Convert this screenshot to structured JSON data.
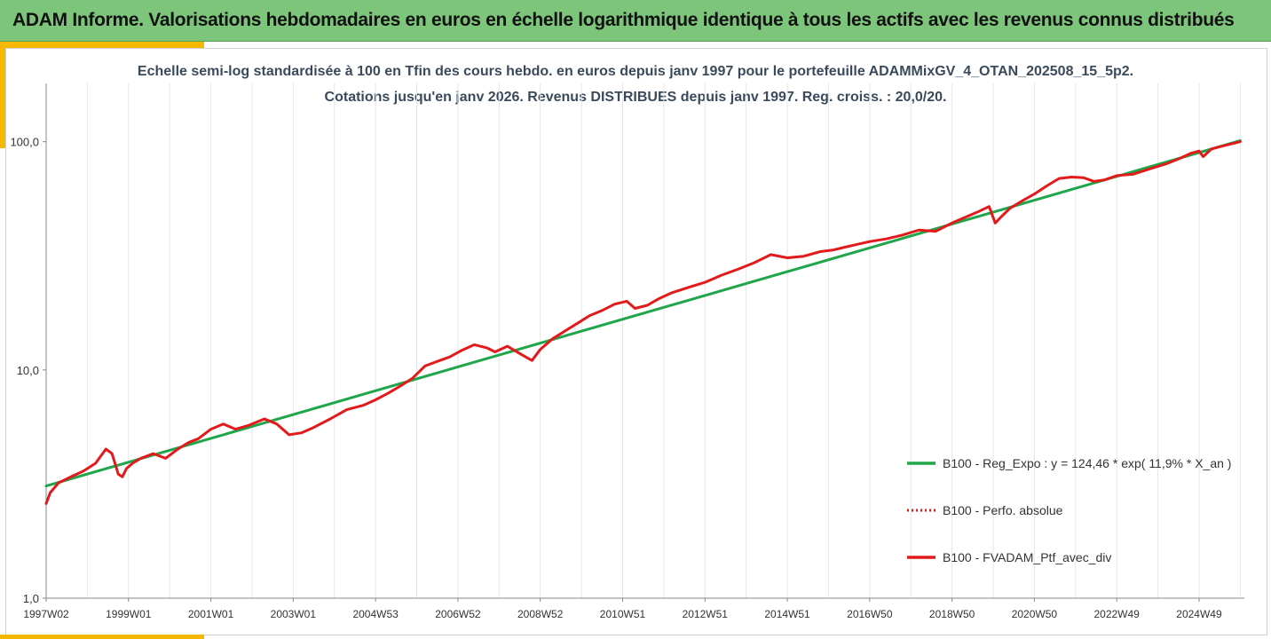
{
  "banner": {
    "title": "ADAM Informe. Valorisations hebdomadaires en euros en échelle logarithmique identique à tous les actifs avec les revenus connus distribués"
  },
  "colors": {
    "banner_bg": "#7cc57a",
    "accent": "#f5b700",
    "reg_line": "#1fa64a",
    "perf_line": "#e31a1c",
    "ptf_line": "#e31a1c",
    "grid": "#e6e6e6"
  },
  "chart_data": {
    "type": "line",
    "title": "Echelle semi-log standardisée  à 100 en Tfin des cours hebdo.  en euros depuis janv 1997 pour le portefeuille ADAMMixGV_4_OTAN_202508_15_5p2.",
    "subtitle": "Cotations  jusqu'en janv 2026. Revenus DISTRIBUES depuis janv 1997. Reg. croiss. : 20,0/20.",
    "y_scale": "log",
    "ylim": [
      1,
      180
    ],
    "y_ticks": [
      {
        "value": 1,
        "label": "1,0"
      },
      {
        "value": 10,
        "label": "10,0"
      },
      {
        "value": 100,
        "label": "100,0"
      }
    ],
    "xlim": [
      1997.0,
      2026.1
    ],
    "x_ticks": [
      {
        "value": 1997.0,
        "label": "1997W02"
      },
      {
        "value": 1999.0,
        "label": "1999W01"
      },
      {
        "value": 2001.0,
        "label": "2001W01"
      },
      {
        "value": 2003.0,
        "label": "2003W01"
      },
      {
        "value": 2005.0,
        "label": "2004W53"
      },
      {
        "value": 2007.0,
        "label": "2006W52"
      },
      {
        "value": 2009.0,
        "label": "2008W52"
      },
      {
        "value": 2011.0,
        "label": "2010W51"
      },
      {
        "value": 2013.0,
        "label": "2012W51"
      },
      {
        "value": 2015.0,
        "label": "2014W51"
      },
      {
        "value": 2017.0,
        "label": "2016W50"
      },
      {
        "value": 2019.0,
        "label": "2018W50"
      },
      {
        "value": 2021.0,
        "label": "2020W50"
      },
      {
        "value": 2023.0,
        "label": "2022W49"
      },
      {
        "value": 2025.0,
        "label": "2024W49"
      }
    ],
    "grid": "vertical",
    "legend_position": "right",
    "series": [
      {
        "name": "B100 - Reg_Expo : y = 124,46 * exp( 11,9% *  X_an )",
        "style": "solid",
        "color": "#1fa64a",
        "x": [
          1997.0,
          2026.0
        ],
        "y": [
          3.1,
          101.0
        ]
      },
      {
        "name": "B100 - Perfo. absolue",
        "style": "dotted",
        "color": "#e31a1c",
        "x": [],
        "y": []
      },
      {
        "name": "B100 - FVADAM_Ptf_avec_div",
        "style": "solid",
        "color": "#e31a1c",
        "x": [
          1997.0,
          1997.1,
          1997.3,
          1997.6,
          1997.9,
          1998.2,
          1998.45,
          1998.6,
          1998.75,
          1998.85,
          1998.95,
          1999.1,
          1999.3,
          1999.6,
          1999.9,
          2000.2,
          2000.45,
          2000.7,
          2001.0,
          2001.3,
          2001.6,
          2001.9,
          2002.3,
          2002.6,
          2002.9,
          2003.2,
          2003.5,
          2003.9,
          2004.3,
          2004.7,
          2005.0,
          2005.3,
          2005.6,
          2005.9,
          2006.2,
          2006.5,
          2006.8,
          2007.1,
          2007.4,
          2007.7,
          2007.9,
          2008.2,
          2008.5,
          2008.8,
          2009.0,
          2009.3,
          2009.6,
          2009.9,
          2010.2,
          2010.5,
          2010.8,
          2011.1,
          2011.3,
          2011.6,
          2011.9,
          2012.2,
          2012.6,
          2013.0,
          2013.4,
          2013.8,
          2014.2,
          2014.6,
          2015.0,
          2015.4,
          2015.8,
          2016.1,
          2016.4,
          2016.7,
          2017.0,
          2017.4,
          2017.8,
          2018.2,
          2018.6,
          2019.0,
          2019.3,
          2019.6,
          2019.9,
          2020.05,
          2020.2,
          2020.4,
          2020.7,
          2021.0,
          2021.3,
          2021.6,
          2021.9,
          2022.2,
          2022.45,
          2022.7,
          2023.0,
          2023.4,
          2023.8,
          2024.2,
          2024.5,
          2024.8,
          2025.0,
          2025.1,
          2025.3,
          2025.6,
          2025.9,
          2026.0
        ],
        "y": [
          2.6,
          2.9,
          3.2,
          3.4,
          3.6,
          3.9,
          4.5,
          4.3,
          3.5,
          3.4,
          3.7,
          3.9,
          4.1,
          4.3,
          4.1,
          4.5,
          4.8,
          5.0,
          5.5,
          5.8,
          5.5,
          5.7,
          6.1,
          5.8,
          5.2,
          5.3,
          5.6,
          6.1,
          6.7,
          7.0,
          7.4,
          7.9,
          8.5,
          9.2,
          10.4,
          10.9,
          11.4,
          12.2,
          12.9,
          12.5,
          12.0,
          12.7,
          11.8,
          11.0,
          12.3,
          13.7,
          14.8,
          16.0,
          17.3,
          18.2,
          19.4,
          20.0,
          18.6,
          19.2,
          20.6,
          21.8,
          23.0,
          24.2,
          26.0,
          27.6,
          29.5,
          32.0,
          31.0,
          31.5,
          33.0,
          33.5,
          34.5,
          35.5,
          36.5,
          37.5,
          39.0,
          41.0,
          40.5,
          44.0,
          46.5,
          49.0,
          52.0,
          44.0,
          47.0,
          51.0,
          55.0,
          59.0,
          64.0,
          69.0,
          70.0,
          69.5,
          67.0,
          68.0,
          71.0,
          72.0,
          76.0,
          80.0,
          84.0,
          89.0,
          91.0,
          86.0,
          93.0,
          96.0,
          99.0,
          100.0
        ]
      }
    ]
  }
}
